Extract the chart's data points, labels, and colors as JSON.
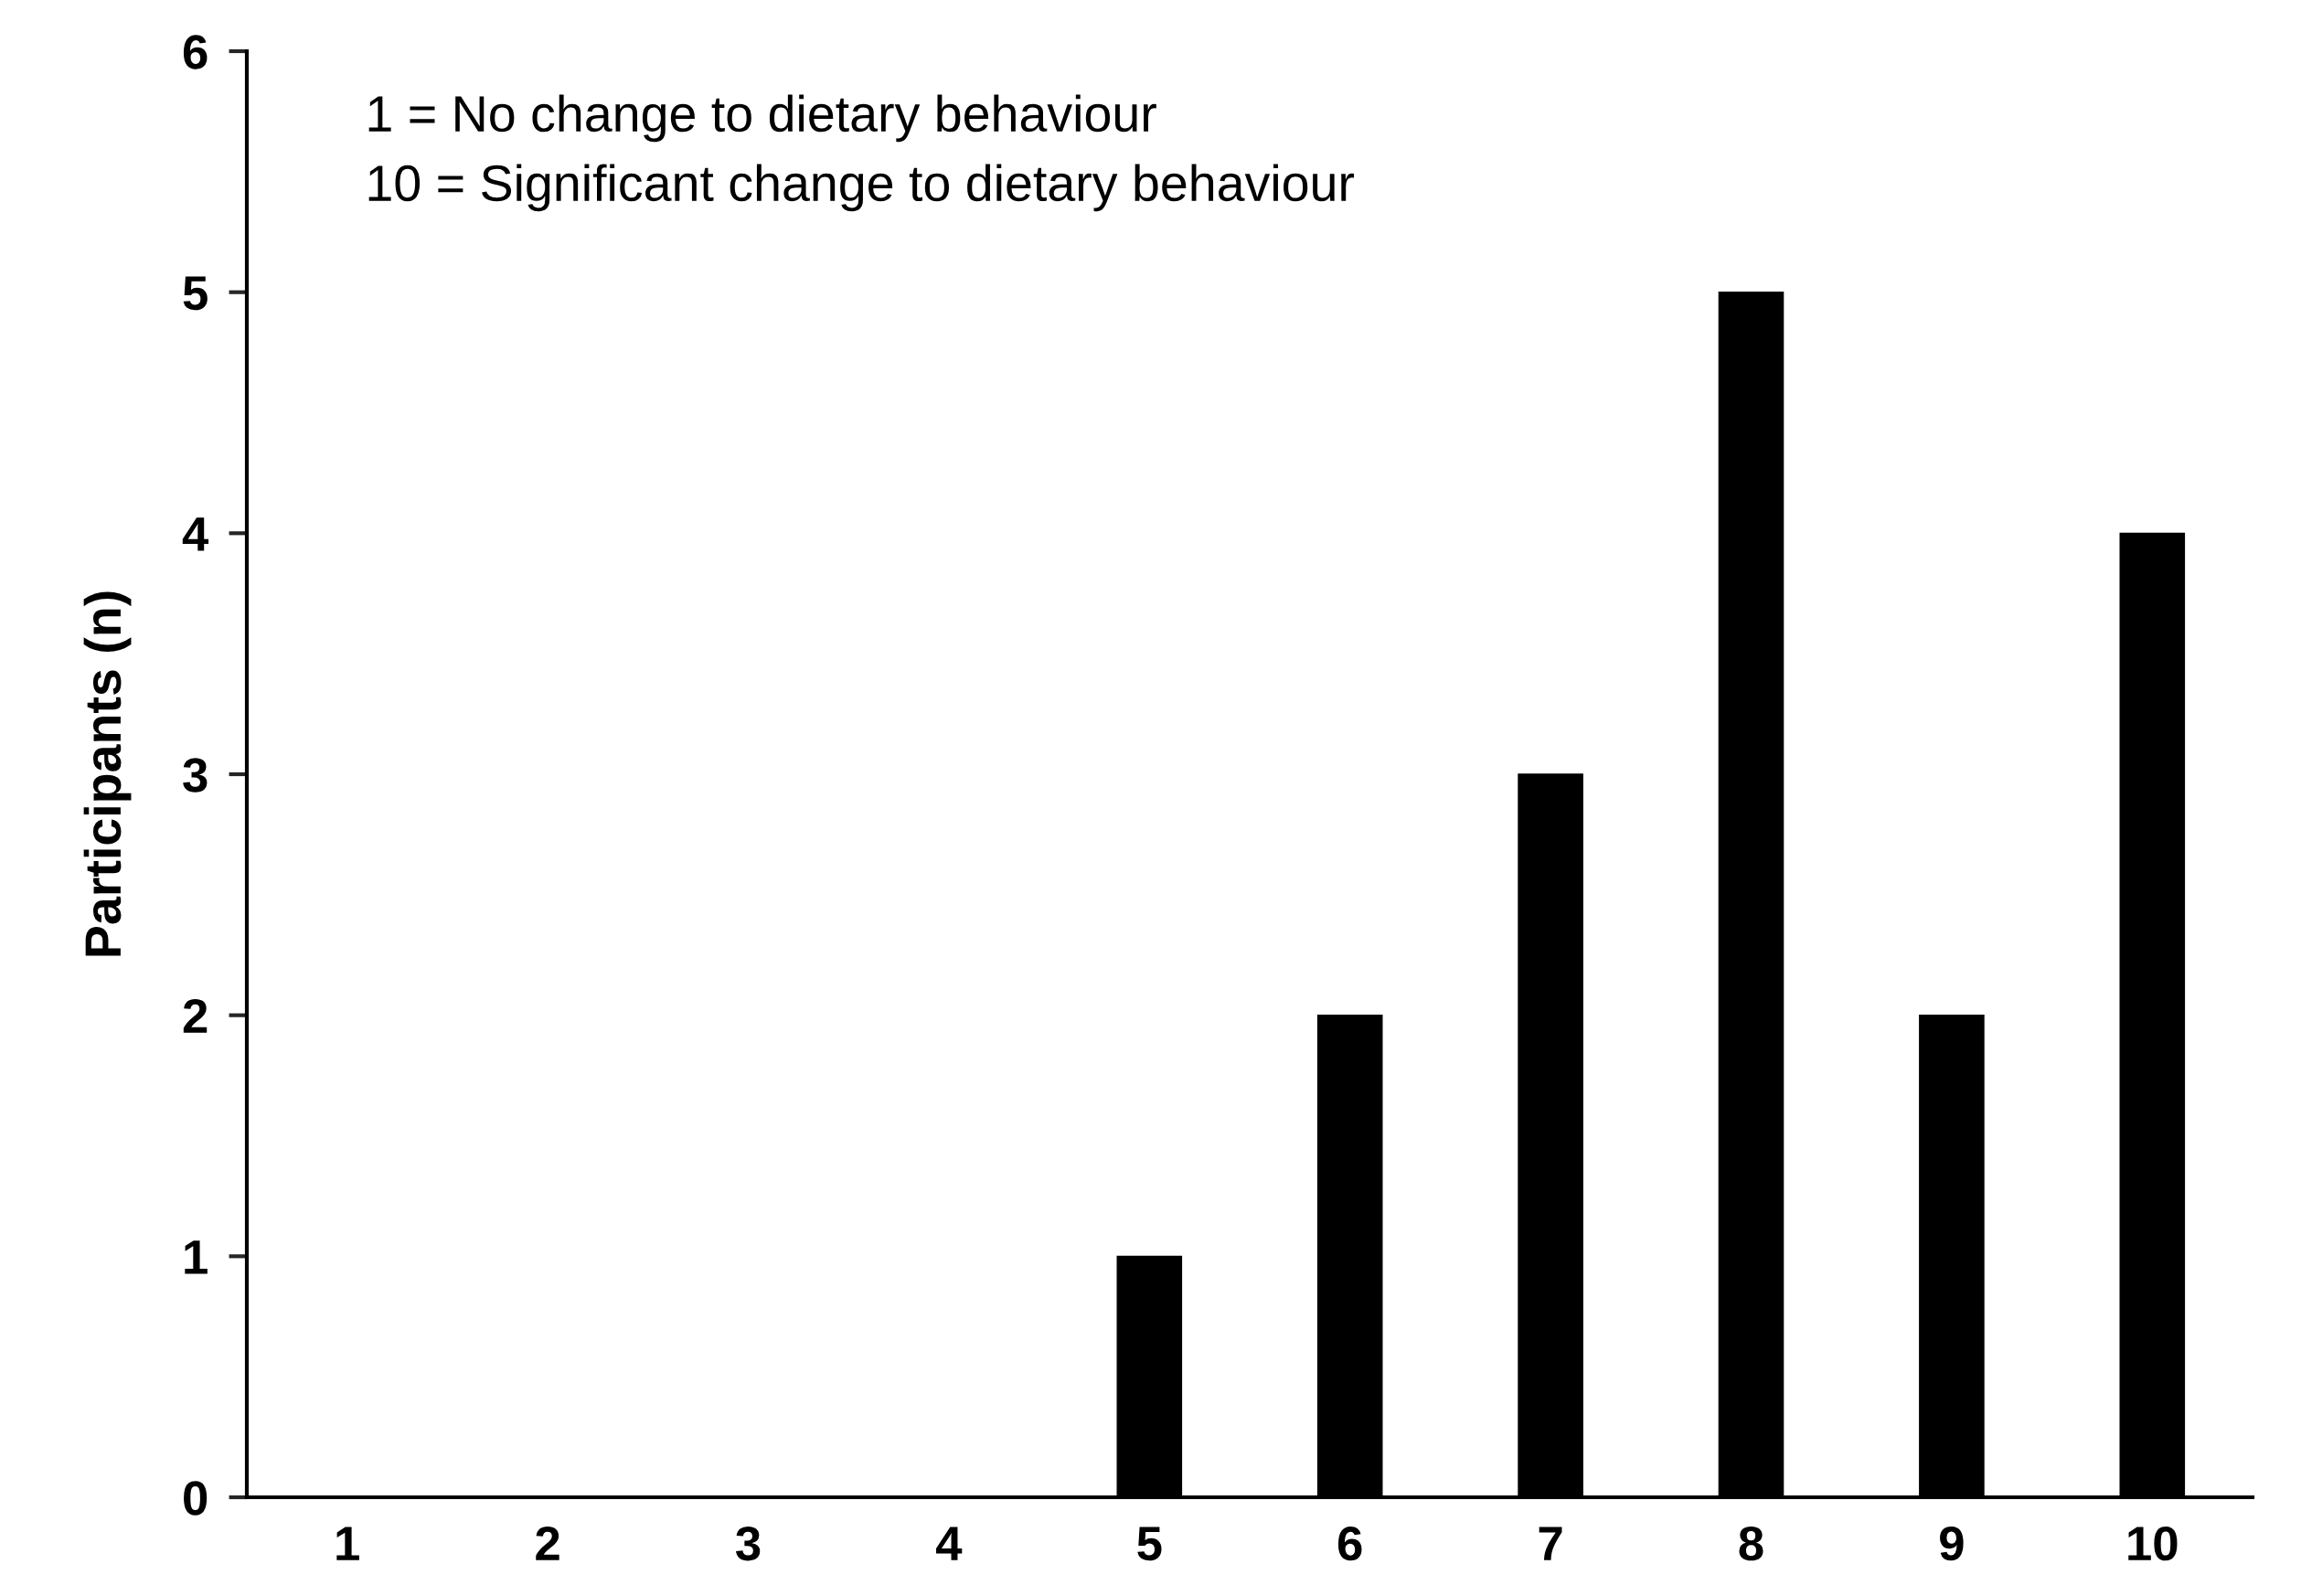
{
  "chart_data": {
    "type": "bar",
    "ylabel": "Participants (n)",
    "categories": [
      "1",
      "2",
      "3",
      "4",
      "5",
      "6",
      "7",
      "8",
      "9",
      "10"
    ],
    "values": [
      0,
      0,
      0,
      0,
      1,
      2,
      3,
      5,
      2,
      4
    ],
    "color": "#000000",
    "ylim": [
      0,
      6
    ],
    "yticks": [
      0,
      1,
      2,
      3,
      4,
      5,
      6
    ],
    "grid": false,
    "legend": false,
    "annotations": [
      "1 = No change to dietary behaviour",
      "10 = Significant change to dietary behaviour"
    ]
  }
}
